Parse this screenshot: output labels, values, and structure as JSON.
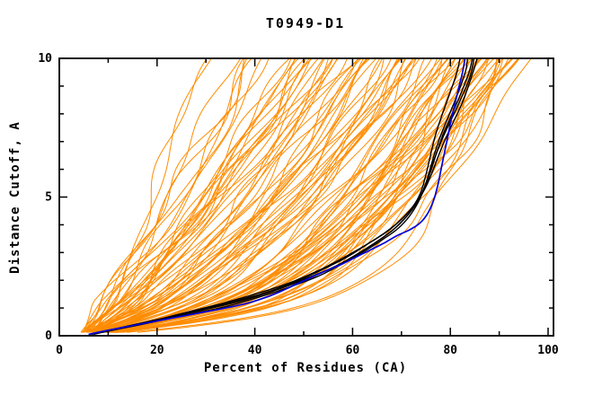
{
  "page": {
    "background": "#ffffff"
  },
  "chart_data": {
    "type": "line",
    "title": "T0949-D1",
    "xlabel": "Percent of Residues (CA)",
    "ylabel": "Distance Cutoff, A",
    "xlim": [
      0,
      100
    ],
    "ylim": [
      0,
      10
    ],
    "grid": false,
    "legend": "none",
    "x_axis": {
      "major_ticks": [
        0,
        20,
        40,
        60,
        80,
        100
      ],
      "major_labels": [
        "0",
        "20",
        "40",
        "60",
        "80",
        "100"
      ],
      "minor_ticks": [
        10,
        30,
        50,
        70,
        90
      ]
    },
    "y_axis": {
      "major_ticks": [
        0,
        5,
        10
      ],
      "major_labels": [
        "0",
        "5",
        "10"
      ],
      "minor_ticks": [
        1,
        2,
        3,
        4,
        6,
        7,
        8,
        9
      ]
    },
    "colors": {
      "background": "#ffffff",
      "frame": "#000000",
      "ensemble": "#ff8c00",
      "model": "#000000",
      "selected_model": "#0000dd"
    },
    "series": [
      {
        "name": "selected-model-blue",
        "color_key": "selected_model",
        "width": 1.7,
        "points": [
          [
            6,
            0.05
          ],
          [
            10,
            0.2
          ],
          [
            16,
            0.4
          ],
          [
            22,
            0.6
          ],
          [
            28,
            0.8
          ],
          [
            34,
            1.0
          ],
          [
            39,
            1.2
          ],
          [
            44,
            1.5
          ],
          [
            49,
            1.9
          ],
          [
            54,
            2.3
          ],
          [
            58,
            2.6
          ],
          [
            62,
            2.95
          ],
          [
            66,
            3.3
          ],
          [
            69,
            3.6
          ],
          [
            72,
            3.85
          ],
          [
            74,
            4.1
          ],
          [
            75.5,
            4.45
          ],
          [
            76.6,
            4.9
          ],
          [
            77.4,
            5.4
          ],
          [
            78.1,
            6.0
          ],
          [
            78.8,
            6.6
          ],
          [
            79.5,
            7.2
          ],
          [
            80.2,
            7.8
          ],
          [
            81,
            8.4
          ],
          [
            81.8,
            9.0
          ],
          [
            82.5,
            9.5
          ],
          [
            83,
            10
          ]
        ]
      },
      {
        "name": "model-black-1",
        "color_key": "model",
        "width": 1.4,
        "points": [
          [
            7,
            0.05
          ],
          [
            12,
            0.25
          ],
          [
            20,
            0.55
          ],
          [
            28,
            0.9
          ],
          [
            36,
            1.25
          ],
          [
            43,
            1.6
          ],
          [
            49,
            2.0
          ],
          [
            54,
            2.4
          ],
          [
            59,
            2.85
          ],
          [
            63,
            3.3
          ],
          [
            67,
            3.75
          ],
          [
            70,
            4.2
          ],
          [
            72.5,
            4.7
          ],
          [
            74,
            5.2
          ],
          [
            75,
            5.8
          ],
          [
            75.8,
            6.4
          ],
          [
            76.6,
            7.0
          ],
          [
            77.6,
            7.6
          ],
          [
            78.8,
            8.2
          ],
          [
            80,
            8.8
          ],
          [
            81.2,
            9.4
          ],
          [
            82,
            10
          ]
        ]
      },
      {
        "name": "model-black-2",
        "color_key": "model",
        "width": 1.4,
        "points": [
          [
            6.5,
            0.05
          ],
          [
            11,
            0.2
          ],
          [
            18,
            0.45
          ],
          [
            26,
            0.75
          ],
          [
            34,
            1.05
          ],
          [
            41,
            1.4
          ],
          [
            47,
            1.75
          ],
          [
            53,
            2.15
          ],
          [
            58,
            2.6
          ],
          [
            62,
            3.0
          ],
          [
            66,
            3.45
          ],
          [
            69.5,
            3.9
          ],
          [
            72,
            4.4
          ],
          [
            73.8,
            4.95
          ],
          [
            75,
            5.5
          ],
          [
            76,
            6.1
          ],
          [
            77,
            6.7
          ],
          [
            78.2,
            7.3
          ],
          [
            79.6,
            7.9
          ],
          [
            81,
            8.5
          ],
          [
            82.3,
            9.1
          ],
          [
            83.2,
            9.6
          ],
          [
            83.5,
            10
          ]
        ]
      },
      {
        "name": "model-black-3",
        "color_key": "model",
        "width": 1.4,
        "points": [
          [
            7.5,
            0.1
          ],
          [
            14,
            0.35
          ],
          [
            23,
            0.7
          ],
          [
            31,
            1.0
          ],
          [
            39,
            1.35
          ],
          [
            46,
            1.75
          ],
          [
            52,
            2.15
          ],
          [
            57,
            2.55
          ],
          [
            61.5,
            3.0
          ],
          [
            65.5,
            3.45
          ],
          [
            68.8,
            3.9
          ],
          [
            71.5,
            4.4
          ],
          [
            73.5,
            4.9
          ],
          [
            75,
            5.45
          ],
          [
            76.2,
            6.05
          ],
          [
            77.3,
            6.65
          ],
          [
            78.5,
            7.25
          ],
          [
            80,
            7.85
          ],
          [
            81.6,
            8.5
          ],
          [
            83,
            9.1
          ],
          [
            84,
            9.6
          ],
          [
            84.5,
            10
          ]
        ]
      },
      {
        "name": "model-black-4",
        "color_key": "model",
        "width": 1.4,
        "points": [
          [
            8,
            0.1
          ],
          [
            16,
            0.4
          ],
          [
            25,
            0.8
          ],
          [
            33,
            1.15
          ],
          [
            40,
            1.5
          ],
          [
            47,
            1.9
          ],
          [
            53,
            2.35
          ],
          [
            58,
            2.8
          ],
          [
            62.5,
            3.25
          ],
          [
            66.5,
            3.7
          ],
          [
            70,
            4.2
          ],
          [
            72.8,
            4.75
          ],
          [
            74.8,
            5.3
          ],
          [
            76.3,
            5.9
          ],
          [
            77.6,
            6.5
          ],
          [
            79,
            7.1
          ],
          [
            80.6,
            7.7
          ],
          [
            82.2,
            8.3
          ],
          [
            83.6,
            8.95
          ],
          [
            84.8,
            9.6
          ],
          [
            85.5,
            10
          ]
        ]
      },
      {
        "name": "model-black-5",
        "color_key": "model",
        "width": 1.4,
        "points": [
          [
            7,
            0.08
          ],
          [
            13,
            0.3
          ],
          [
            21,
            0.6
          ],
          [
            30,
            0.95
          ],
          [
            38,
            1.3
          ],
          [
            45,
            1.7
          ],
          [
            51,
            2.1
          ],
          [
            56.5,
            2.5
          ],
          [
            61,
            2.95
          ],
          [
            65,
            3.4
          ],
          [
            68.5,
            3.85
          ],
          [
            71.3,
            4.35
          ],
          [
            73.3,
            4.85
          ],
          [
            74.8,
            5.4
          ],
          [
            76,
            6.0
          ],
          [
            77.2,
            6.6
          ],
          [
            78.6,
            7.2
          ],
          [
            80.2,
            7.8
          ],
          [
            81.8,
            8.4
          ],
          [
            83.3,
            9.0
          ],
          [
            84.3,
            9.5
          ],
          [
            84.8,
            10
          ]
        ]
      }
    ],
    "ensemble": {
      "name": "predictor-models-orange",
      "color_key": "ensemble",
      "count": 96,
      "seed": 20949,
      "width": 1,
      "start_x_range": [
        4,
        7.5
      ],
      "top_x_range": [
        17.5,
        97
      ],
      "note": "dense fan of unlabeled predictor model curves from common origin near x=5, y=0; paths approximated procedurally"
    }
  }
}
